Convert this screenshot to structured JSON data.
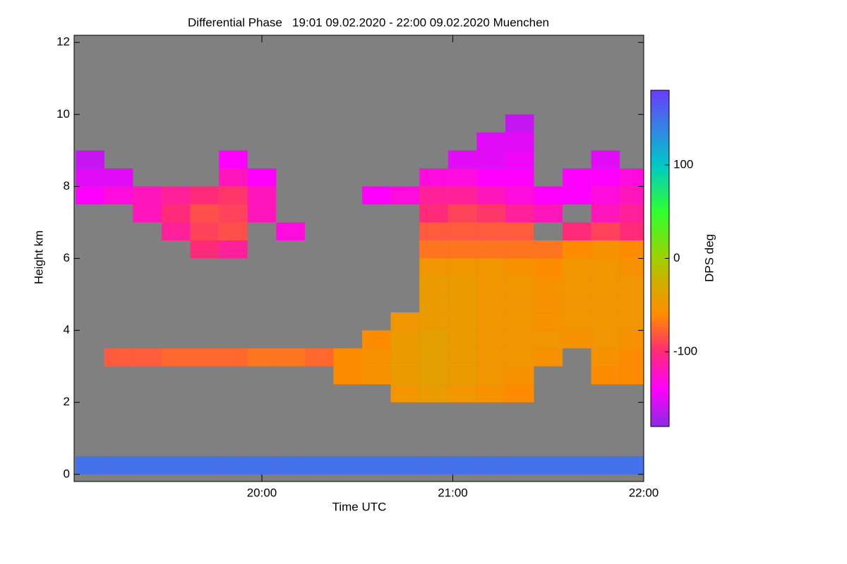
{
  "chart_data": {
    "type": "heatmap",
    "title": "Differential Phase   19:01 09.02.2020 - 22:00 09.02.2020 Muenchen",
    "x_label": "Time UTC",
    "y_label": "Height km",
    "colorbar_label": "DPS deg",
    "xlim": [
      19.0167,
      22.0
    ],
    "xticks": [
      {
        "value": 20,
        "label": "20:00"
      },
      {
        "value": 21,
        "label": "21:00"
      },
      {
        "value": 22,
        "label": "22:00"
      }
    ],
    "ylim": [
      -0.2,
      12.2
    ],
    "yticks": [
      0,
      2,
      4,
      6,
      8,
      10,
      12
    ],
    "clim": [
      -180,
      180
    ],
    "cticks": [
      -100,
      0,
      100
    ],
    "background": "#808080",
    "colormap": [
      {
        "value": -180,
        "color": "#8a2be2"
      },
      {
        "value": -140,
        "color": "#ff00ff"
      },
      {
        "value": -100,
        "color": "#ff2a78"
      },
      {
        "value": -60,
        "color": "#ff8c00"
      },
      {
        "value": -20,
        "color": "#c8b400"
      },
      {
        "value": 0,
        "color": "#a0d000"
      },
      {
        "value": 50,
        "color": "#30ff30"
      },
      {
        "value": 100,
        "color": "#00c8c8"
      },
      {
        "value": 180,
        "color": "#6a3cff"
      }
    ],
    "x": [
      19.1,
      19.25,
      19.4,
      19.55,
      19.7,
      19.85,
      20.0,
      20.15,
      20.3,
      20.45,
      20.6,
      20.75,
      20.9,
      21.05,
      21.2,
      21.35,
      21.5,
      21.65,
      21.8,
      21.95
    ],
    "y": [
      0.25,
      0.75,
      1.25,
      1.75,
      2.25,
      2.75,
      3.25,
      3.75,
      4.25,
      4.75,
      5.25,
      5.75,
      6.25,
      6.75,
      7.25,
      7.75,
      8.25,
      8.75,
      9.25,
      9.75,
      10.25,
      10.75,
      11.25,
      11.75
    ],
    "values": [
      [
        150,
        150,
        150,
        150,
        150,
        150,
        150,
        150,
        150,
        150,
        150,
        150,
        150,
        150,
        150,
        150,
        150,
        150,
        150,
        150
      ],
      [
        null,
        null,
        null,
        null,
        null,
        null,
        null,
        null,
        null,
        null,
        null,
        null,
        null,
        null,
        null,
        null,
        null,
        null,
        null,
        null
      ],
      [
        null,
        null,
        null,
        null,
        null,
        null,
        null,
        null,
        null,
        null,
        null,
        null,
        null,
        null,
        null,
        null,
        null,
        null,
        null,
        null
      ],
      [
        null,
        null,
        null,
        null,
        null,
        null,
        null,
        null,
        null,
        null,
        null,
        null,
        null,
        null,
        null,
        null,
        null,
        null,
        null,
        null
      ],
      [
        null,
        null,
        null,
        null,
        null,
        null,
        null,
        null,
        null,
        null,
        null,
        -50,
        -45,
        -50,
        -55,
        -60,
        null,
        null,
        null,
        null
      ],
      [
        null,
        null,
        null,
        null,
        null,
        null,
        null,
        null,
        null,
        -60,
        -55,
        -45,
        -40,
        -45,
        -50,
        -55,
        null,
        null,
        -60,
        -60
      ],
      [
        null,
        -80,
        -80,
        -75,
        -75,
        -75,
        -70,
        -70,
        -75,
        -60,
        -55,
        -45,
        -40,
        -45,
        -50,
        -50,
        -55,
        null,
        -55,
        -60
      ],
      [
        null,
        null,
        null,
        null,
        null,
        null,
        null,
        null,
        null,
        null,
        -60,
        -45,
        -40,
        -45,
        -50,
        -50,
        -50,
        -55,
        -50,
        -55
      ],
      [
        null,
        null,
        null,
        null,
        null,
        null,
        null,
        null,
        null,
        null,
        null,
        -50,
        -45,
        -45,
        -50,
        -50,
        -55,
        -50,
        -50,
        -50
      ],
      [
        null,
        null,
        null,
        null,
        null,
        null,
        null,
        null,
        null,
        null,
        null,
        null,
        -45,
        -45,
        -50,
        -50,
        -55,
        -50,
        -50,
        -50
      ],
      [
        null,
        null,
        null,
        null,
        null,
        null,
        null,
        null,
        null,
        null,
        null,
        null,
        -45,
        -45,
        -50,
        -50,
        -55,
        -50,
        -50,
        -50
      ],
      [
        null,
        null,
        null,
        null,
        null,
        null,
        null,
        null,
        null,
        null,
        null,
        null,
        -50,
        -50,
        -50,
        -55,
        -60,
        -50,
        -50,
        -55
      ],
      [
        null,
        null,
        null,
        null,
        -100,
        -110,
        null,
        null,
        null,
        null,
        null,
        null,
        -70,
        -70,
        -70,
        -70,
        -70,
        -60,
        -55,
        -60
      ],
      [
        null,
        null,
        null,
        -110,
        -90,
        -85,
        null,
        -130,
        null,
        null,
        null,
        null,
        -80,
        -80,
        -80,
        -80,
        null,
        -100,
        -90,
        -100
      ],
      [
        null,
        null,
        -120,
        -100,
        -85,
        -90,
        -120,
        null,
        null,
        null,
        null,
        null,
        -100,
        -90,
        -95,
        -110,
        -120,
        null,
        -120,
        -110
      ],
      [
        -140,
        -130,
        -120,
        -110,
        -100,
        -95,
        -120,
        null,
        null,
        null,
        -140,
        -130,
        -110,
        -110,
        -120,
        -130,
        -140,
        -140,
        -130,
        -120
      ],
      [
        -150,
        -150,
        null,
        null,
        null,
        -120,
        -140,
        null,
        null,
        null,
        null,
        null,
        -130,
        -130,
        -140,
        -140,
        null,
        -140,
        -140,
        -130
      ],
      [
        -160,
        null,
        null,
        null,
        null,
        -140,
        null,
        null,
        null,
        null,
        null,
        null,
        null,
        -150,
        -150,
        -145,
        null,
        null,
        -150,
        null
      ],
      [
        null,
        null,
        null,
        null,
        null,
        null,
        null,
        null,
        null,
        null,
        null,
        null,
        null,
        null,
        -150,
        -150,
        null,
        null,
        null,
        null
      ],
      [
        null,
        null,
        null,
        null,
        null,
        null,
        null,
        null,
        null,
        null,
        null,
        null,
        null,
        null,
        null,
        -160,
        null,
        null,
        null,
        null
      ],
      [
        null,
        null,
        null,
        null,
        null,
        null,
        null,
        null,
        null,
        null,
        null,
        null,
        null,
        null,
        null,
        null,
        null,
        null,
        null,
        null
      ],
      [
        null,
        null,
        null,
        null,
        null,
        null,
        null,
        null,
        null,
        null,
        null,
        null,
        null,
        null,
        null,
        null,
        null,
        null,
        null,
        null
      ],
      [
        null,
        null,
        null,
        null,
        null,
        null,
        null,
        null,
        null,
        null,
        null,
        null,
        null,
        null,
        null,
        null,
        null,
        null,
        null,
        null
      ],
      [
        null,
        null,
        null,
        null,
        null,
        null,
        null,
        null,
        null,
        null,
        null,
        null,
        null,
        null,
        null,
        null,
        null,
        null,
        null,
        null
      ]
    ]
  }
}
